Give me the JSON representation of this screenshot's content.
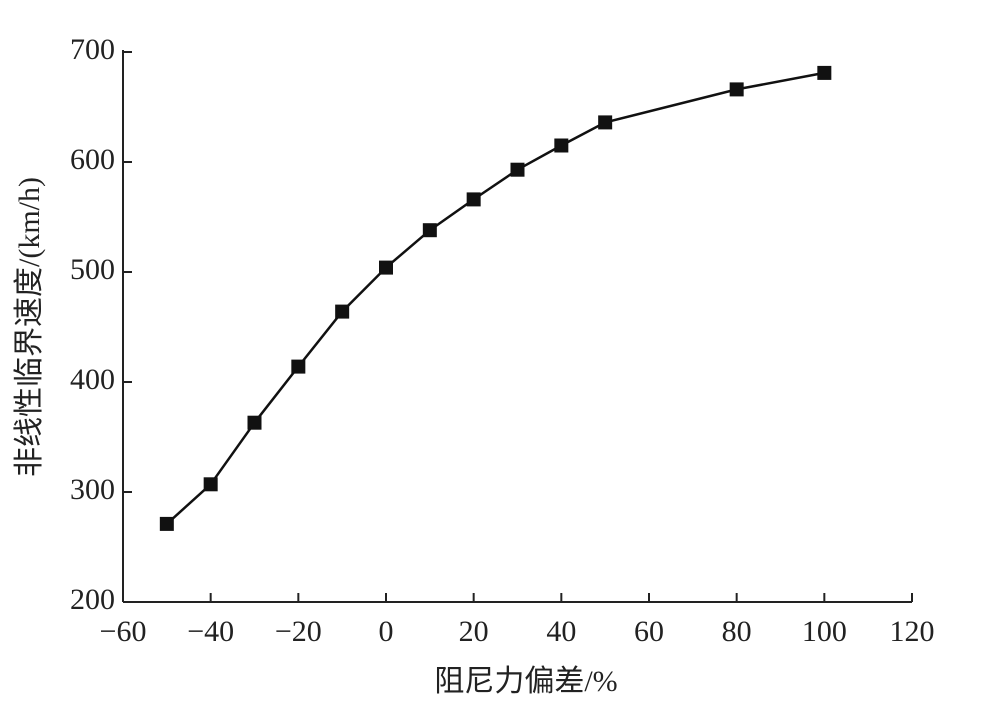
{
  "chart_data": {
    "type": "line",
    "x_label": "阻尼力偏差/%",
    "y_label": "非线性临界速度/(km/h)",
    "x": [
      -50,
      -40,
      -30,
      -20,
      -10,
      0,
      10,
      20,
      30,
      40,
      50,
      80,
      100
    ],
    "series": [
      {
        "color": "#111111",
        "values": [
          271,
          307,
          363,
          414,
          464,
          504,
          538,
          566,
          593,
          615,
          636,
          666,
          681
        ]
      }
    ],
    "xlim": [
      -60,
      120
    ],
    "xticks": [
      {
        "value": -60,
        "label": "−60"
      },
      {
        "value": -40,
        "label": "−40"
      },
      {
        "value": -20,
        "label": "−20"
      },
      0,
      20,
      40,
      60,
      80,
      100,
      120
    ],
    "ylim": [
      200,
      700
    ],
    "yticks": [
      200,
      300,
      400,
      500,
      600,
      700
    ]
  }
}
